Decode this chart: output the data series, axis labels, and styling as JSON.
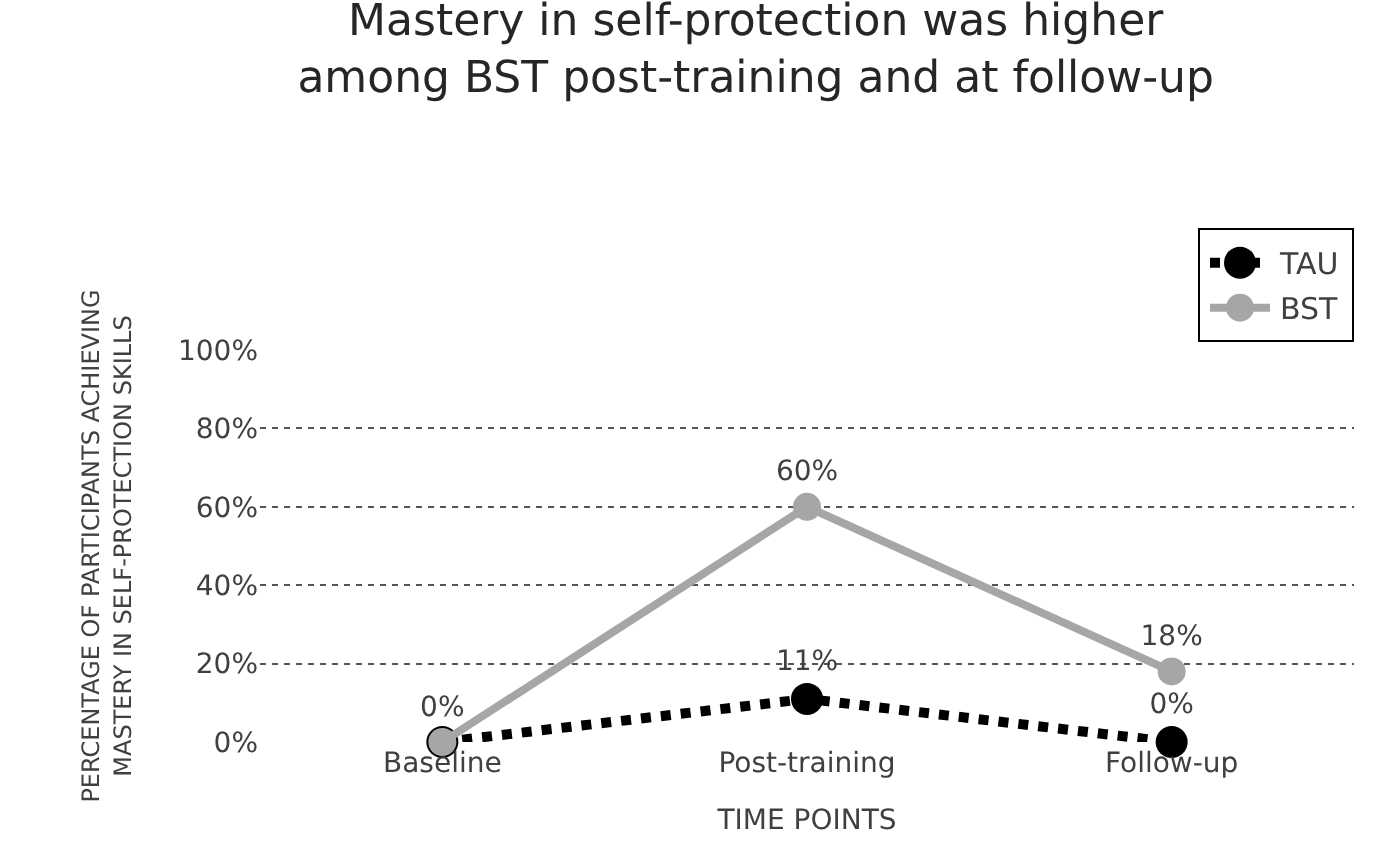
{
  "chart_data": {
    "type": "line",
    "title": "Mastery in self-protection was higher among BST post-training and at follow-up",
    "xlabel": "TIME POINTS",
    "ylabel": "PERCENTAGE OF PARTICIPANTS ACHIEVING MASTERY IN SELF-PROTECTION SKILLS",
    "categories": [
      "Baseline",
      "Post-training",
      "Follow-up"
    ],
    "series": [
      {
        "name": "TAU",
        "color": "#000000",
        "values": [
          0,
          11,
          0
        ],
        "line_style": "dotted",
        "value_labels": [
          null,
          "11%",
          "0%"
        ]
      },
      {
        "name": "BST",
        "color": "#a6a6a6",
        "values": [
          0,
          60,
          18
        ],
        "line_style": "solid",
        "value_labels": [
          "0%",
          "60%",
          "18%"
        ]
      }
    ],
    "ylim": [
      0,
      100
    ],
    "yticks": [
      {
        "value": 0,
        "label": "0%"
      },
      {
        "value": 20,
        "label": "20%"
      },
      {
        "value": 40,
        "label": "40%"
      },
      {
        "value": 60,
        "label": "60%"
      },
      {
        "value": 80,
        "label": "80%"
      },
      {
        "value": 100,
        "label": "100%"
      }
    ],
    "grid": "y",
    "legend": "top right",
    "marker": "circle"
  }
}
